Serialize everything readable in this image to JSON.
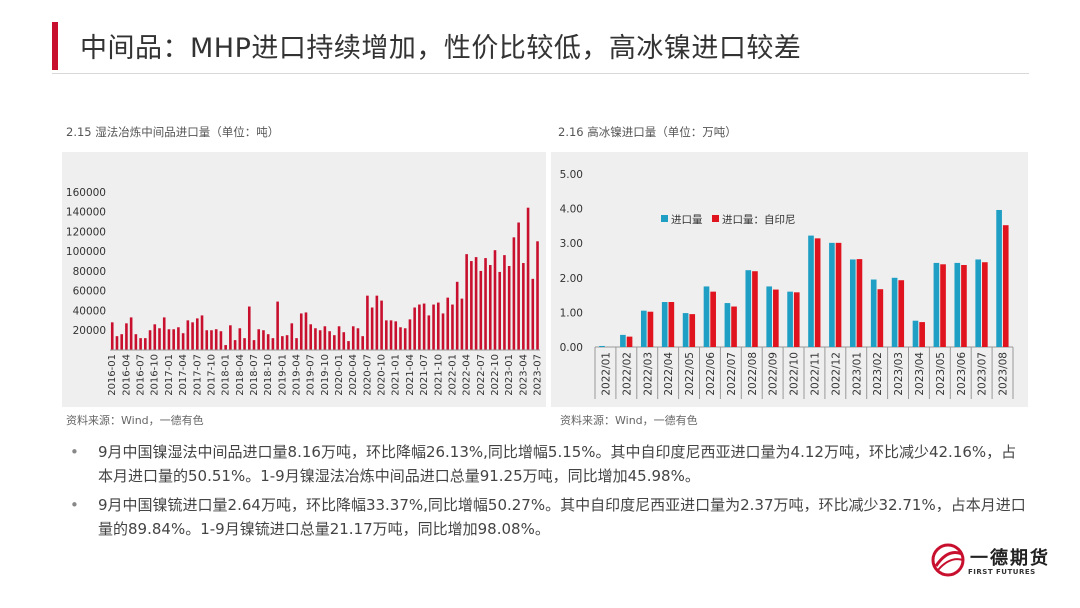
{
  "page": {
    "title": "中间品：MHP进口持续增加，性价比较低，高冰镍进口较差"
  },
  "left_chart": {
    "caption": "2.15 湿法冶炼中间品进口量（单位：吨）",
    "source": "资料来源：Wind，一德有色"
  },
  "right_chart": {
    "caption": "2.16 高冰镍进口量（单位：万吨）",
    "source": "资料来源：Wind，一德有色"
  },
  "bullets": [
    "9月中国镍湿法中间品进口量8.16万吨，环比降幅26.13%,同比增幅5.15%。其中自印度尼西亚进口量为4.12万吨，环比减少42.16%，占本月进口量的50.51%。1-9月镍湿法冶炼中间品进口总量91.25万吨，同比增加45.98%。",
    "9月中国镍锍进口量2.64万吨，环比降幅33.37%,同比增幅50.27%。其中自印度尼西亚进口量为2.37万吨，环比减少32.71%，占本月进口量的89.84%。1-9月镍锍进口总量21.17万吨，同比增加98.08%。"
  ],
  "logo": {
    "name": "一德期货",
    "sub": "FIRST FUTURES",
    "colors": {
      "red": "#c8102e"
    }
  },
  "chart_data": [
    {
      "type": "bar",
      "title": "",
      "x_start": "2016-01",
      "tick_labels": [
        "2016-01",
        "2016-04",
        "2016-07",
        "2016-10",
        "2017-01",
        "2017-04",
        "2017-07",
        "2017-10",
        "2018-01",
        "2018-04",
        "2018-07",
        "2018-10",
        "2019-01",
        "2019-04",
        "2019-07",
        "2019-10",
        "2020-01",
        "2020-04",
        "2020-07",
        "2020-10",
        "2021-01",
        "2021-04",
        "2021-07",
        "2021-10",
        "2022-01",
        "2022-04",
        "2022-07",
        "2022-10",
        "2023-01",
        "2023-04",
        "2023-07"
      ],
      "yticks": [
        20000,
        40000,
        60000,
        80000,
        100000,
        120000,
        140000,
        160000
      ],
      "ylim": [
        0,
        170000
      ],
      "color": "#c8102e",
      "values": [
        28000,
        14000,
        16000,
        27000,
        33000,
        16000,
        12000,
        12000,
        20000,
        26000,
        22000,
        33000,
        21000,
        21000,
        23000,
        17000,
        30000,
        28000,
        32000,
        35000,
        20000,
        20000,
        21000,
        19000,
        5000,
        25000,
        10000,
        22000,
        12000,
        44000,
        10000,
        21000,
        20000,
        16000,
        12000,
        49000,
        14000,
        15000,
        27000,
        12000,
        37000,
        38000,
        26000,
        22000,
        20000,
        24000,
        19000,
        15000,
        24000,
        18000,
        9000,
        24000,
        22000,
        14000,
        55000,
        43000,
        55000,
        50000,
        30000,
        30000,
        29000,
        23000,
        22000,
        31000,
        43000,
        46000,
        47000,
        35000,
        46000,
        48000,
        37000,
        53000,
        46000,
        69000,
        52000,
        97000,
        90000,
        94000,
        80000,
        93000,
        86000,
        101000,
        79000,
        96000,
        85000,
        114000,
        129000,
        88000,
        144000,
        72000,
        110000
      ]
    },
    {
      "type": "bar",
      "title": "",
      "categories": [
        "2022/01",
        "2022/02",
        "2022/03",
        "2022/04",
        "2022/05",
        "2022/06",
        "2022/07",
        "2022/08",
        "2022/09",
        "2022/10",
        "2022/11",
        "2022/12",
        "2023/01",
        "2023/02",
        "2023/03",
        "2023/04",
        "2023/05",
        "2023/06",
        "2023/07",
        "2023/08"
      ],
      "yticks": [
        "0.00",
        "1.00",
        "2.00",
        "3.00",
        "4.00",
        "5.00"
      ],
      "ylim": [
        0,
        5
      ],
      "legend_position": "top-left",
      "series": [
        {
          "name": "进口量",
          "color": "#1f9fc4",
          "values": [
            0.03,
            0.35,
            1.05,
            1.3,
            0.98,
            1.75,
            1.27,
            2.22,
            1.75,
            1.6,
            3.22,
            3.01,
            2.53,
            1.95,
            2.0,
            0.76,
            2.43,
            2.43,
            2.53,
            3.96
          ]
        },
        {
          "name": "进口量：自印尼",
          "color": "#e0141e",
          "values": [
            0.0,
            0.3,
            1.02,
            1.3,
            0.95,
            1.6,
            1.17,
            2.19,
            1.66,
            1.58,
            3.14,
            3.01,
            2.54,
            1.67,
            1.93,
            0.72,
            2.39,
            2.37,
            2.45,
            3.52
          ]
        }
      ]
    }
  ]
}
